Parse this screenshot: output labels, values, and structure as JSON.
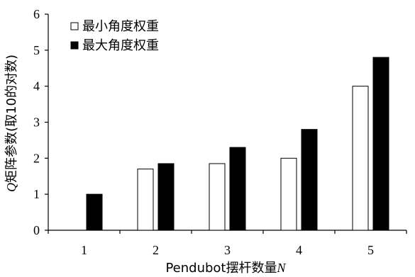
{
  "chart_data": {
    "type": "bar",
    "categories": [
      "1",
      "2",
      "3",
      "4",
      "5"
    ],
    "series": [
      {
        "name": "最小角度权重",
        "values": [
          0,
          1.7,
          1.85,
          2.0,
          4.0
        ],
        "color": "#ffffff"
      },
      {
        "name": "最大角度权重",
        "values": [
          1.0,
          1.85,
          2.3,
          2.8,
          4.8
        ],
        "color": "#000000"
      }
    ],
    "xlabel_main": "Pendubot摆杆数量",
    "xlabel_symbol": "N",
    "ylabel_symbol": "Q",
    "ylabel_main": "矩阵参数(取10的对数)",
    "ylim": [
      0,
      6
    ],
    "yticks": [
      "0",
      "1",
      "2",
      "3",
      "4",
      "5",
      "6"
    ],
    "legend_position": "top-left",
    "grid": false
  }
}
